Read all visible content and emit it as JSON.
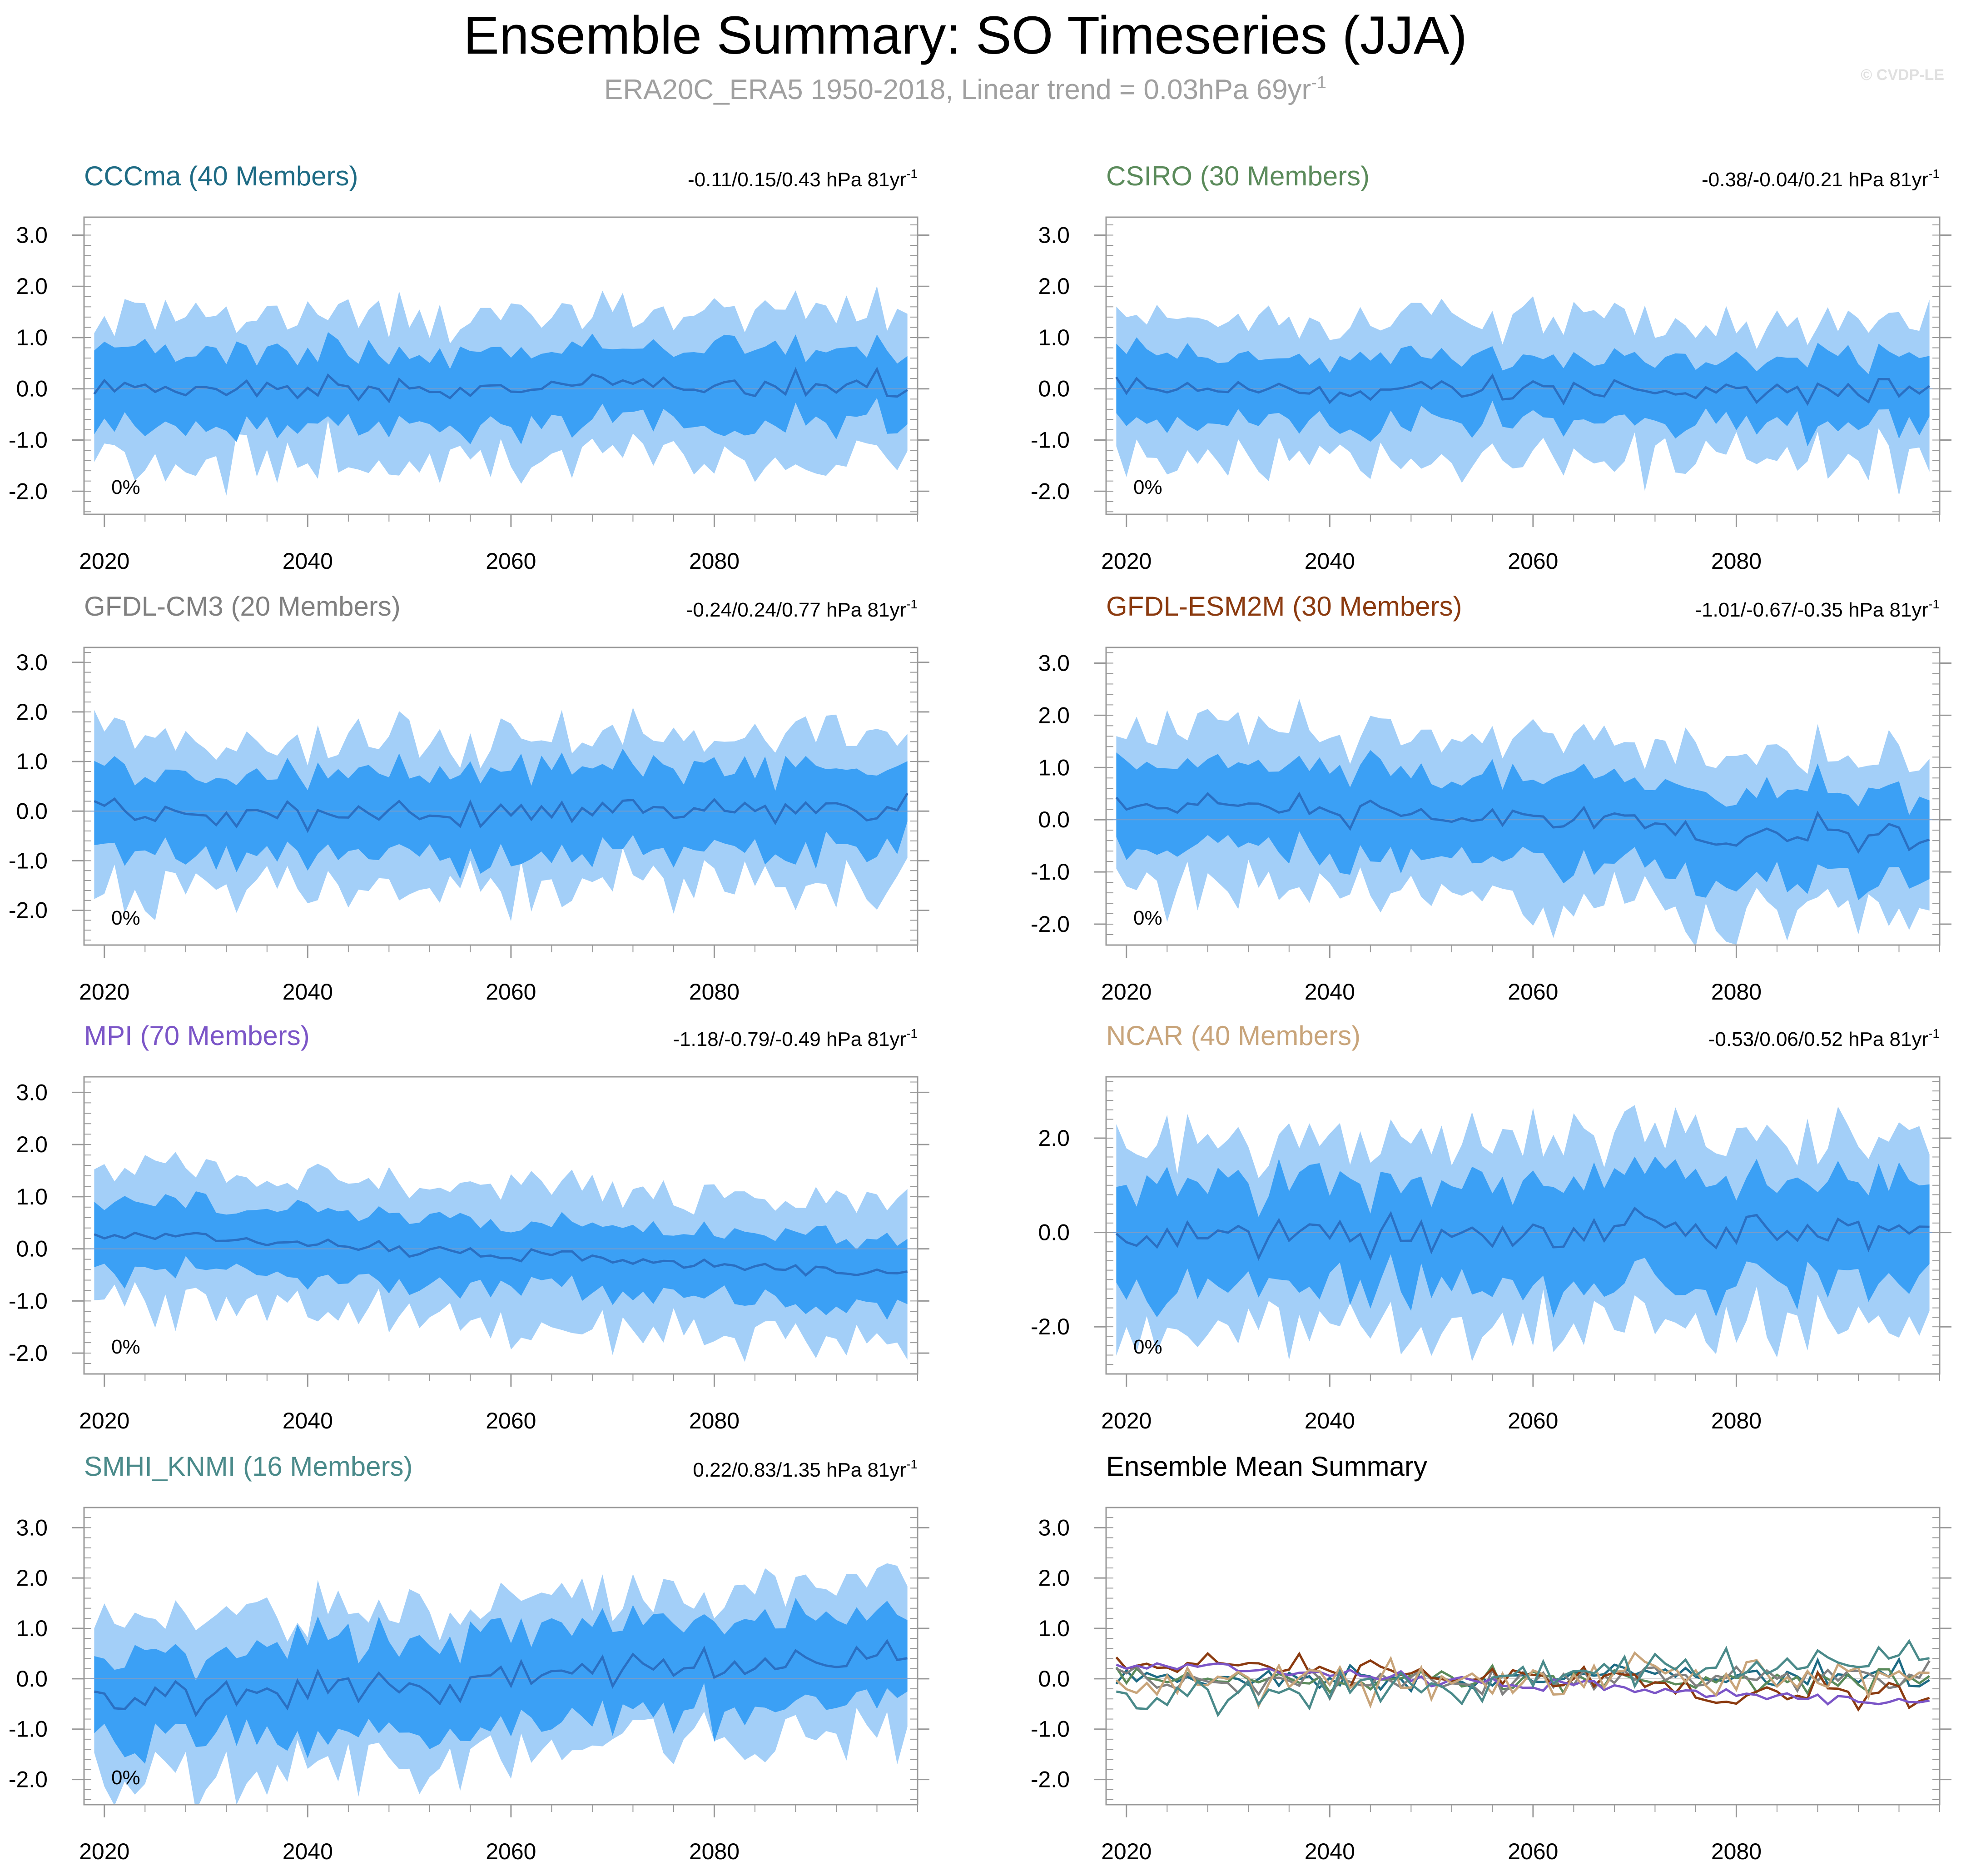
{
  "title": "Ensemble Summary: SO Timeseries (JJA)",
  "subtitle": "ERA20C_ERA5 1950-2018, Linear trend = 0.03hPa 69yr",
  "subtitle_sup": "-1",
  "watermark": "© CVDP-LE",
  "unit_sup": "-1",
  "colors": {
    "outer_band": "#a3cff8",
    "inner_band": "#3ba0f5",
    "mean_line": "#2a6fc2",
    "zero_line": "#7a9cc9",
    "axis": "#999999",
    "text": "#000000"
  },
  "chart_data": [
    {
      "type": "area",
      "title": "CCCma (40 Members)",
      "title_color": "#1e6b84",
      "trend_text": "-0.11/0.15/0.43 hPa 81yr",
      "pct_label": "0%",
      "xlim": [
        2018,
        2100
      ],
      "ylim": [
        -2.45,
        3.35
      ],
      "xticks": [
        2020,
        2040,
        2060,
        2080
      ],
      "xticklabels": [
        "2020",
        "2040",
        "2060",
        "2080"
      ],
      "yticks": [
        3.0,
        2.0,
        1.0,
        0.0,
        -1.0,
        -2.0
      ],
      "yticklabels": [
        "3.0",
        "2.0",
        "1.0",
        "0.0",
        "-1.0",
        "-2.0"
      ],
      "mean_start": 0.0,
      "mean_trend": 0.05,
      "mean_amp": 0.18,
      "inner_halfwidth": 0.75,
      "outer_halfwidth": 1.4,
      "seed": 11
    },
    {
      "type": "area",
      "title": "CSIRO (30 Members)",
      "title_color": "#5a8a5a",
      "trend_text": "-0.38/-0.04/0.21 hPa 81yr",
      "pct_label": "0%",
      "xlim": [
        2018,
        2100
      ],
      "ylim": [
        -2.45,
        3.35
      ],
      "xticks": [
        2020,
        2040,
        2060,
        2080
      ],
      "xticklabels": [
        "2020",
        "2040",
        "2060",
        "2080"
      ],
      "yticks": [
        3.0,
        2.0,
        1.0,
        0.0,
        -1.0,
        -2.0
      ],
      "yticklabels": [
        "3.0",
        "2.0",
        "1.0",
        "0.0",
        "-1.0",
        "-2.0"
      ],
      "mean_start": 0.0,
      "mean_trend": -0.02,
      "mean_amp": 0.18,
      "inner_halfwidth": 0.65,
      "outer_halfwidth": 1.35,
      "seed": 23
    },
    {
      "type": "area",
      "title": "GFDL-CM3 (20 Members)",
      "title_color": "#808080",
      "trend_text": "-0.24/0.24/0.77 hPa 81yr",
      "pct_label": "0%",
      "xlim": [
        2018,
        2100
      ],
      "ylim": [
        -2.7,
        3.3
      ],
      "xticks": [
        2020,
        2040,
        2060,
        2080
      ],
      "xticklabels": [
        "2020",
        "2040",
        "2060",
        "2080"
      ],
      "yticks": [
        3.0,
        2.0,
        1.0,
        0.0,
        -1.0,
        -2.0
      ],
      "yticklabels": [
        "3.0",
        "2.0",
        "1.0",
        "0.0",
        "-1.0",
        "-2.0"
      ],
      "mean_start": -0.1,
      "mean_trend": 0.2,
      "mean_amp": 0.22,
      "inner_halfwidth": 0.85,
      "outer_halfwidth": 1.5,
      "seed": 37
    },
    {
      "type": "area",
      "title": "GFDL-ESM2M (30 Members)",
      "title_color": "#8b3a0f",
      "trend_text": "-1.01/-0.67/-0.35 hPa 81yr",
      "pct_label": "0%",
      "xlim": [
        2018,
        2100
      ],
      "ylim": [
        -2.4,
        3.3
      ],
      "xticks": [
        2020,
        2040,
        2060,
        2080
      ],
      "xticklabels": [
        "2020",
        "2040",
        "2060",
        "2080"
      ],
      "yticks": [
        3.0,
        2.0,
        1.0,
        0.0,
        -1.0,
        -2.0
      ],
      "yticklabels": [
        "3.0",
        "2.0",
        "1.0",
        "0.0",
        "-1.0",
        "-2.0"
      ],
      "mean_start": 0.35,
      "mean_trend": -0.7,
      "mean_amp": 0.2,
      "inner_halfwidth": 0.8,
      "outer_halfwidth": 1.5,
      "seed": 41
    },
    {
      "type": "area",
      "title": "MPI (70 Members)",
      "title_color": "#7b55c7",
      "trend_text": "-1.18/-0.79/-0.49 hPa 81yr",
      "pct_label": "0%",
      "xlim": [
        2018,
        2100
      ],
      "ylim": [
        -2.4,
        3.3
      ],
      "xticks": [
        2020,
        2040,
        2060,
        2080
      ],
      "xticklabels": [
        "2020",
        "2040",
        "2060",
        "2080"
      ],
      "yticks": [
        3.0,
        2.0,
        1.0,
        0.0,
        -1.0,
        -2.0
      ],
      "yticklabels": [
        "3.0",
        "2.0",
        "1.0",
        "0.0",
        "-1.0",
        "-2.0"
      ],
      "mean_start": 0.3,
      "mean_trend": -0.8,
      "mean_amp": 0.1,
      "inner_halfwidth": 0.65,
      "outer_halfwidth": 1.3,
      "seed": 53
    },
    {
      "type": "area",
      "title": "NCAR (40 Members)",
      "title_color": "#c8a47a",
      "trend_text": "-0.53/0.06/0.52 hPa 81yr",
      "pct_label": "0%",
      "xlim": [
        2018,
        2100
      ],
      "ylim": [
        -3.0,
        3.3
      ],
      "xticks": [
        2020,
        2040,
        2060,
        2080
      ],
      "xticklabels": [
        "2020",
        "2040",
        "2060",
        "2080"
      ],
      "yticks": [
        2.0,
        0.0,
        -2.0
      ],
      "yticklabels": [
        "2.0",
        "0.0",
        "-2.0"
      ],
      "mean_start": 0.0,
      "mean_trend": 0.05,
      "mean_amp": 0.3,
      "inner_halfwidth": 1.1,
      "outer_halfwidth": 2.0,
      "seed": 67
    },
    {
      "type": "area",
      "title": "SMHI_KNMI (16 Members)",
      "title_color": "#4a8a8a",
      "trend_text": "0.22/0.83/1.35 hPa 81yr",
      "pct_label": "0%",
      "xlim": [
        2018,
        2100
      ],
      "ylim": [
        -2.5,
        3.4
      ],
      "xticks": [
        2020,
        2040,
        2060,
        2080
      ],
      "xticklabels": [
        "2020",
        "2040",
        "2060",
        "2080"
      ],
      "yticks": [
        3.0,
        2.0,
        1.0,
        0.0,
        -1.0,
        -2.0
      ],
      "yticklabels": [
        "3.0",
        "2.0",
        "1.0",
        "0.0",
        "-1.0",
        "-2.0"
      ],
      "mean_start": -0.4,
      "mean_trend": 0.85,
      "mean_amp": 0.28,
      "inner_halfwidth": 0.9,
      "outer_halfwidth": 1.5,
      "seed": 79
    },
    {
      "type": "line",
      "title": "Ensemble Mean Summary",
      "title_color": "#000000",
      "xlim": [
        2018,
        2100
      ],
      "ylim": [
        -2.5,
        3.4
      ],
      "xticks": [
        2020,
        2040,
        2060,
        2080
      ],
      "xticklabels": [
        "2020",
        "2040",
        "2060",
        "2080"
      ],
      "yticks": [
        3.0,
        2.0,
        1.0,
        0.0,
        -1.0,
        -2.0
      ],
      "yticklabels": [
        "3.0",
        "2.0",
        "1.0",
        "0.0",
        "-1.0",
        "-2.0"
      ],
      "series": [
        {
          "name": "CCCma",
          "color": "#1e6b84",
          "seed": 11,
          "mean_start": 0.0,
          "mean_trend": 0.05,
          "mean_amp": 0.18
        },
        {
          "name": "CSIRO",
          "color": "#5a8a5a",
          "seed": 23,
          "mean_start": 0.0,
          "mean_trend": -0.02,
          "mean_amp": 0.18
        },
        {
          "name": "GFDL-CM3",
          "color": "#808080",
          "seed": 37,
          "mean_start": -0.1,
          "mean_trend": 0.2,
          "mean_amp": 0.22
        },
        {
          "name": "GFDL-ESM2M",
          "color": "#8b3a0f",
          "seed": 41,
          "mean_start": 0.35,
          "mean_trend": -0.7,
          "mean_amp": 0.2
        },
        {
          "name": "MPI",
          "color": "#7b55c7",
          "seed": 53,
          "mean_start": 0.3,
          "mean_trend": -0.8,
          "mean_amp": 0.1
        },
        {
          "name": "NCAR",
          "color": "#c8a47a",
          "seed": 67,
          "mean_start": 0.0,
          "mean_trend": 0.05,
          "mean_amp": 0.3
        },
        {
          "name": "SMHI_KNMI",
          "color": "#4a8a8a",
          "seed": 79,
          "mean_start": -0.4,
          "mean_trend": 0.85,
          "mean_amp": 0.28
        }
      ]
    }
  ]
}
